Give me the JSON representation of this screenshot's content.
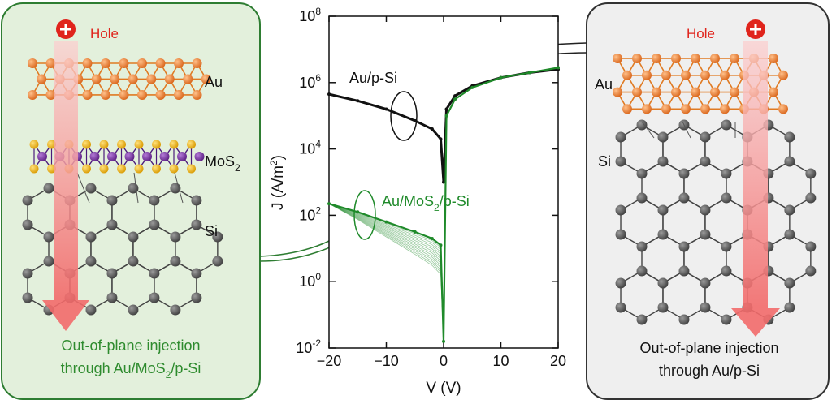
{
  "left_panel": {
    "hole_label": "Hole",
    "layer_labels": {
      "au": "Au",
      "mos2_main": "MoS",
      "mos2_sub": "2",
      "si": "Si"
    },
    "caption_line1": "Out-of-plane injection",
    "caption_line2_a": "through Au/MoS",
    "caption_line2_sub": "2",
    "caption_line2_b": "/p-Si"
  },
  "right_panel": {
    "hole_label": "Hole",
    "layer_labels": {
      "au": "Au",
      "si": "Si"
    },
    "caption_line1": "Out-of-plane injection",
    "caption_line2": "through Au/p-Si"
  },
  "colors": {
    "left_panel_fill": "#e3f0dc",
    "left_panel_border": "#2e7d32",
    "right_panel_fill": "#efefef",
    "right_panel_border": "#333333",
    "au_atom": "#e07a22",
    "mo_atom": "#7b2fa6",
    "s_atom": "#f0b400",
    "si_atom": "#555555",
    "hole_red": "#e0241c",
    "green_curve": "#1f8a2a",
    "black_curve": "#111111",
    "caption_green": "#2e8b2e"
  },
  "chart_data": {
    "type": "line",
    "xlabel": "V (V)",
    "ylabel": "J (A/m²)",
    "ylabel_parts": {
      "main": "J (A/m",
      "sup": "2",
      "end": ")"
    },
    "xlim": [
      -20,
      20
    ],
    "ylim_log10": [
      -2,
      8
    ],
    "y_scale": "log",
    "x_ticks": [
      -20,
      -10,
      0,
      10,
      20
    ],
    "x_tick_labels": [
      "−20",
      "−10",
      "0",
      "10",
      "20"
    ],
    "y_ticks": [
      {
        "base": "10",
        "exp": "-2"
      },
      {
        "base": "10",
        "exp": "0"
      },
      {
        "base": "10",
        "exp": "2"
      },
      {
        "base": "10",
        "exp": "4"
      },
      {
        "base": "10",
        "exp": "6"
      },
      {
        "base": "10",
        "exp": "8"
      }
    ],
    "series": [
      {
        "name": "Au/p-Si",
        "color": "#111111",
        "x": [
          -20,
          -15,
          -10,
          -5,
          -2,
          -0.5,
          0,
          0.5,
          2,
          5,
          10,
          15,
          20
        ],
        "log10_y": [
          5.65,
          5.45,
          5.2,
          4.85,
          4.6,
          4.3,
          3,
          5.2,
          5.6,
          5.9,
          6.15,
          6.3,
          6.4
        ]
      },
      {
        "name": "Au/MoS2/p-Si",
        "name_parts": {
          "main": "Au/MoS",
          "sub": "2",
          "end": "/p-Si"
        },
        "color": "#1f8a2a",
        "x": [
          -20,
          -15,
          -10,
          -5,
          -2,
          -0.5,
          0,
          0.5,
          2,
          5,
          10,
          15,
          20
        ],
        "log10_y": [
          2.35,
          2.1,
          1.8,
          1.5,
          1.3,
          1.1,
          -1.8,
          5.0,
          5.5,
          5.85,
          6.15,
          6.3,
          6.45
        ]
      }
    ]
  }
}
